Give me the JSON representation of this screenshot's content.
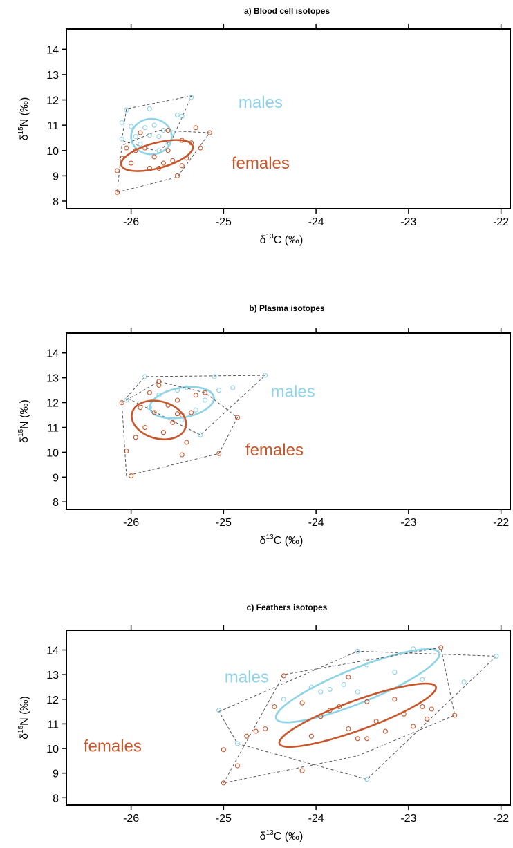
{
  "colors": {
    "males": "#8fd3e6",
    "females": "#c8562b",
    "hull": "#555555",
    "frame": "#000000"
  },
  "chart_data": [
    {
      "type": "scatter",
      "title": "a) Blood cell isotopes",
      "xlabel_prefix": "δ",
      "xlabel_sup": "13",
      "xlabel_suffix": "C (‰)",
      "ylabel_prefix": "δ",
      "ylabel_sup": "15",
      "ylabel_suffix": "N (‰)",
      "xlim": [
        -26.7,
        -21.9
      ],
      "ylim": [
        7.7,
        14.8
      ],
      "xticks": [
        -26,
        -25,
        -24,
        -23,
        -22
      ],
      "yticks": [
        8,
        9,
        10,
        11,
        12,
        13,
        14
      ],
      "grid": false,
      "labels": [
        {
          "series": "males",
          "text": "males",
          "x": -24.6,
          "y": 11.9
        },
        {
          "series": "females",
          "text": "females",
          "x": -24.6,
          "y": 9.5
        }
      ],
      "series": [
        {
          "name": "males",
          "points": [
            [
              -26.1,
              11.1
            ],
            [
              -26.05,
              11.6
            ],
            [
              -26.0,
              10.95
            ],
            [
              -25.95,
              10.55
            ],
            [
              -25.85,
              10.9
            ],
            [
              -25.8,
              11.65
            ],
            [
              -25.75,
              11.0
            ],
            [
              -25.7,
              10.55
            ],
            [
              -25.65,
              10.8
            ],
            [
              -25.6,
              10.3
            ],
            [
              -25.55,
              10.7
            ],
            [
              -25.5,
              11.4
            ],
            [
              -25.45,
              11.35
            ],
            [
              -25.35,
              12.1
            ],
            [
              -25.7,
              10.0
            ],
            [
              -25.8,
              10.6
            ],
            [
              -25.9,
              10.25
            ],
            [
              -26.1,
              10.45
            ]
          ],
          "hull": [
            [
              -26.1,
              10.4
            ],
            [
              -26.05,
              11.65
            ],
            [
              -25.35,
              12.15
            ],
            [
              -25.45,
              11.3
            ],
            [
              -25.55,
              10.5
            ],
            [
              -25.7,
              9.95
            ],
            [
              -26.1,
              10.4
            ]
          ],
          "ellipse": {
            "cx": -25.78,
            "cy": 10.55,
            "rx": 0.22,
            "ry": 0.7,
            "angle": 0
          }
        },
        {
          "name": "females",
          "points": [
            [
              -26.15,
              8.35
            ],
            [
              -26.15,
              9.2
            ],
            [
              -26.1,
              9.7
            ],
            [
              -26.05,
              10.1
            ],
            [
              -26.0,
              9.5
            ],
            [
              -25.95,
              10.0
            ],
            [
              -25.9,
              10.7
            ],
            [
              -25.85,
              10.1
            ],
            [
              -25.8,
              9.3
            ],
            [
              -25.75,
              9.75
            ],
            [
              -25.7,
              9.3
            ],
            [
              -25.65,
              9.5
            ],
            [
              -25.6,
              10.0
            ],
            [
              -25.55,
              9.6
            ],
            [
              -25.5,
              9.0
            ],
            [
              -25.45,
              10.4
            ],
            [
              -25.4,
              9.7
            ],
            [
              -25.35,
              10.3
            ],
            [
              -25.25,
              10.1
            ],
            [
              -25.15,
              10.7
            ],
            [
              -25.45,
              9.4
            ],
            [
              -25.3,
              10.9
            ],
            [
              -25.6,
              10.8
            ]
          ],
          "hull": [
            [
              -26.15,
              8.35
            ],
            [
              -25.5,
              8.95
            ],
            [
              -25.15,
              10.7
            ],
            [
              -25.7,
              10.8
            ],
            [
              -26.1,
              10.2
            ],
            [
              -26.15,
              8.35
            ]
          ],
          "ellipse": {
            "cx": -25.72,
            "cy": 9.8,
            "rx": 0.4,
            "ry": 0.5,
            "angle": -15
          }
        }
      ]
    },
    {
      "type": "scatter",
      "title": "b) Plasma isotopes",
      "xlabel_prefix": "δ",
      "xlabel_sup": "13",
      "xlabel_suffix": "C (‰)",
      "ylabel_prefix": "δ",
      "ylabel_sup": "15",
      "ylabel_suffix": "N (‰)",
      "xlim": [
        -26.7,
        -21.9
      ],
      "ylim": [
        7.7,
        14.8
      ],
      "xticks": [
        -26,
        -25,
        -24,
        -23,
        -22
      ],
      "yticks": [
        8,
        9,
        10,
        11,
        12,
        13,
        14
      ],
      "grid": false,
      "labels": [
        {
          "series": "males",
          "text": "males",
          "x": -24.25,
          "y": 12.45
        },
        {
          "series": "females",
          "text": "females",
          "x": -24.45,
          "y": 10.1
        }
      ],
      "series": [
        {
          "name": "males",
          "points": [
            [
              -26.05,
              12.1
            ],
            [
              -25.85,
              13.05
            ],
            [
              -25.7,
              12.3
            ],
            [
              -25.6,
              11.9
            ],
            [
              -25.5,
              12.5
            ],
            [
              -25.4,
              12.6
            ],
            [
              -25.3,
              11.7
            ],
            [
              -25.2,
              12.1
            ],
            [
              -25.1,
              13.05
            ],
            [
              -25.05,
              12.5
            ],
            [
              -24.9,
              12.6
            ],
            [
              -24.55,
              13.1
            ],
            [
              -25.25,
              10.7
            ],
            [
              -25.45,
              11.3
            ],
            [
              -25.8,
              11.8
            ]
          ],
          "hull": [
            [
              -26.05,
              12.2
            ],
            [
              -25.85,
              13.05
            ],
            [
              -24.55,
              13.1
            ],
            [
              -25.25,
              10.7
            ],
            [
              -26.05,
              12.2
            ]
          ],
          "ellipse": {
            "cx": -25.45,
            "cy": 12.0,
            "rx": 0.35,
            "ry": 0.6,
            "angle": -10
          }
        },
        {
          "name": "females",
          "points": [
            [
              -26.1,
              12.0
            ],
            [
              -26.05,
              10.05
            ],
            [
              -26.0,
              9.05
            ],
            [
              -25.95,
              10.6
            ],
            [
              -25.9,
              11.8
            ],
            [
              -25.85,
              11.0
            ],
            [
              -25.8,
              12.4
            ],
            [
              -25.75,
              11.6
            ],
            [
              -25.7,
              12.7
            ],
            [
              -25.65,
              10.8
            ],
            [
              -25.6,
              11.9
            ],
            [
              -25.55,
              11.2
            ],
            [
              -25.5,
              12.1
            ],
            [
              -25.45,
              11.5
            ],
            [
              -25.45,
              9.9
            ],
            [
              -25.4,
              10.4
            ],
            [
              -25.35,
              11.6
            ],
            [
              -25.3,
              12.3
            ],
            [
              -25.2,
              12.4
            ],
            [
              -25.05,
              9.95
            ],
            [
              -24.85,
              11.4
            ],
            [
              -25.7,
              12.85
            ],
            [
              -25.5,
              11.55
            ]
          ],
          "hull": [
            [
              -26.1,
              12.0
            ],
            [
              -25.7,
              12.85
            ],
            [
              -25.2,
              12.4
            ],
            [
              -24.85,
              11.4
            ],
            [
              -25.05,
              9.95
            ],
            [
              -26.05,
              9.05
            ],
            [
              -26.1,
              12.0
            ]
          ],
          "ellipse": {
            "cx": -25.7,
            "cy": 11.3,
            "rx": 0.3,
            "ry": 0.75,
            "angle": 15
          }
        }
      ]
    },
    {
      "type": "scatter",
      "title": "c) Feathers isotopes",
      "xlabel_prefix": "δ",
      "xlabel_sup": "13",
      "xlabel_suffix": "C (‰)",
      "ylabel_prefix": "δ",
      "ylabel_sup": "15",
      "ylabel_suffix": "N (‰)",
      "xlim": [
        -26.7,
        -21.9
      ],
      "ylim": [
        7.7,
        14.8
      ],
      "xticks": [
        -26,
        -25,
        -24,
        -23,
        -22
      ],
      "yticks": [
        8,
        9,
        10,
        11,
        12,
        13,
        14
      ],
      "grid": false,
      "labels": [
        {
          "series": "males",
          "text": "males",
          "x": -24.75,
          "y": 12.9
        },
        {
          "series": "females",
          "text": "females",
          "x": -26.2,
          "y": 10.1
        }
      ],
      "series": [
        {
          "name": "males",
          "points": [
            [
              -25.05,
              11.55
            ],
            [
              -24.85,
              10.2
            ],
            [
              -24.05,
              12.5
            ],
            [
              -23.95,
              12.3
            ],
            [
              -23.85,
              12.4
            ],
            [
              -23.7,
              12.6
            ],
            [
              -23.55,
              12.3
            ],
            [
              -23.45,
              13.4
            ],
            [
              -23.55,
              13.95
            ],
            [
              -23.15,
              13.1
            ],
            [
              -22.95,
              14.05
            ],
            [
              -22.85,
              12.8
            ],
            [
              -22.4,
              12.7
            ],
            [
              -22.05,
              13.75
            ],
            [
              -23.45,
              8.75
            ],
            [
              -24.35,
              12.0
            ]
          ],
          "hull": [
            [
              -25.05,
              11.5
            ],
            [
              -23.55,
              13.95
            ],
            [
              -22.05,
              13.75
            ],
            [
              -23.45,
              8.75
            ],
            [
              -24.85,
              10.2
            ],
            [
              -25.05,
              11.5
            ]
          ],
          "ellipse": {
            "cx": -23.55,
            "cy": 12.55,
            "rx": 0.95,
            "ry": 0.7,
            "angle": -22
          }
        },
        {
          "name": "females",
          "points": [
            [
              -25.0,
              8.6
            ],
            [
              -25.0,
              9.95
            ],
            [
              -24.85,
              9.3
            ],
            [
              -24.75,
              10.5
            ],
            [
              -24.65,
              10.7
            ],
            [
              -24.55,
              10.8
            ],
            [
              -24.45,
              11.7
            ],
            [
              -24.35,
              12.95
            ],
            [
              -24.15,
              11.85
            ],
            [
              -24.05,
              10.5
            ],
            [
              -23.95,
              11.3
            ],
            [
              -23.85,
              11.55
            ],
            [
              -23.75,
              11.7
            ],
            [
              -23.65,
              10.8
            ],
            [
              -23.55,
              10.4
            ],
            [
              -23.45,
              11.9
            ],
            [
              -23.35,
              11.1
            ],
            [
              -23.25,
              10.7
            ],
            [
              -23.15,
              12.0
            ],
            [
              -23.05,
              11.4
            ],
            [
              -22.95,
              10.9
            ],
            [
              -22.85,
              11.7
            ],
            [
              -22.75,
              11.6
            ],
            [
              -22.65,
              14.1
            ],
            [
              -22.5,
              11.35
            ],
            [
              -24.15,
              9.1
            ],
            [
              -23.45,
              10.4
            ],
            [
              -23.65,
              12.9
            ],
            [
              -22.8,
              11.2
            ]
          ],
          "hull": [
            [
              -25.0,
              8.6
            ],
            [
              -24.35,
              13.0
            ],
            [
              -22.65,
              14.1
            ],
            [
              -22.5,
              11.35
            ],
            [
              -23.55,
              9.7
            ],
            [
              -25.0,
              8.6
            ]
          ],
          "ellipse": {
            "cx": -23.55,
            "cy": 11.35,
            "rx": 0.9,
            "ry": 0.6,
            "angle": -20
          }
        }
      ]
    }
  ]
}
